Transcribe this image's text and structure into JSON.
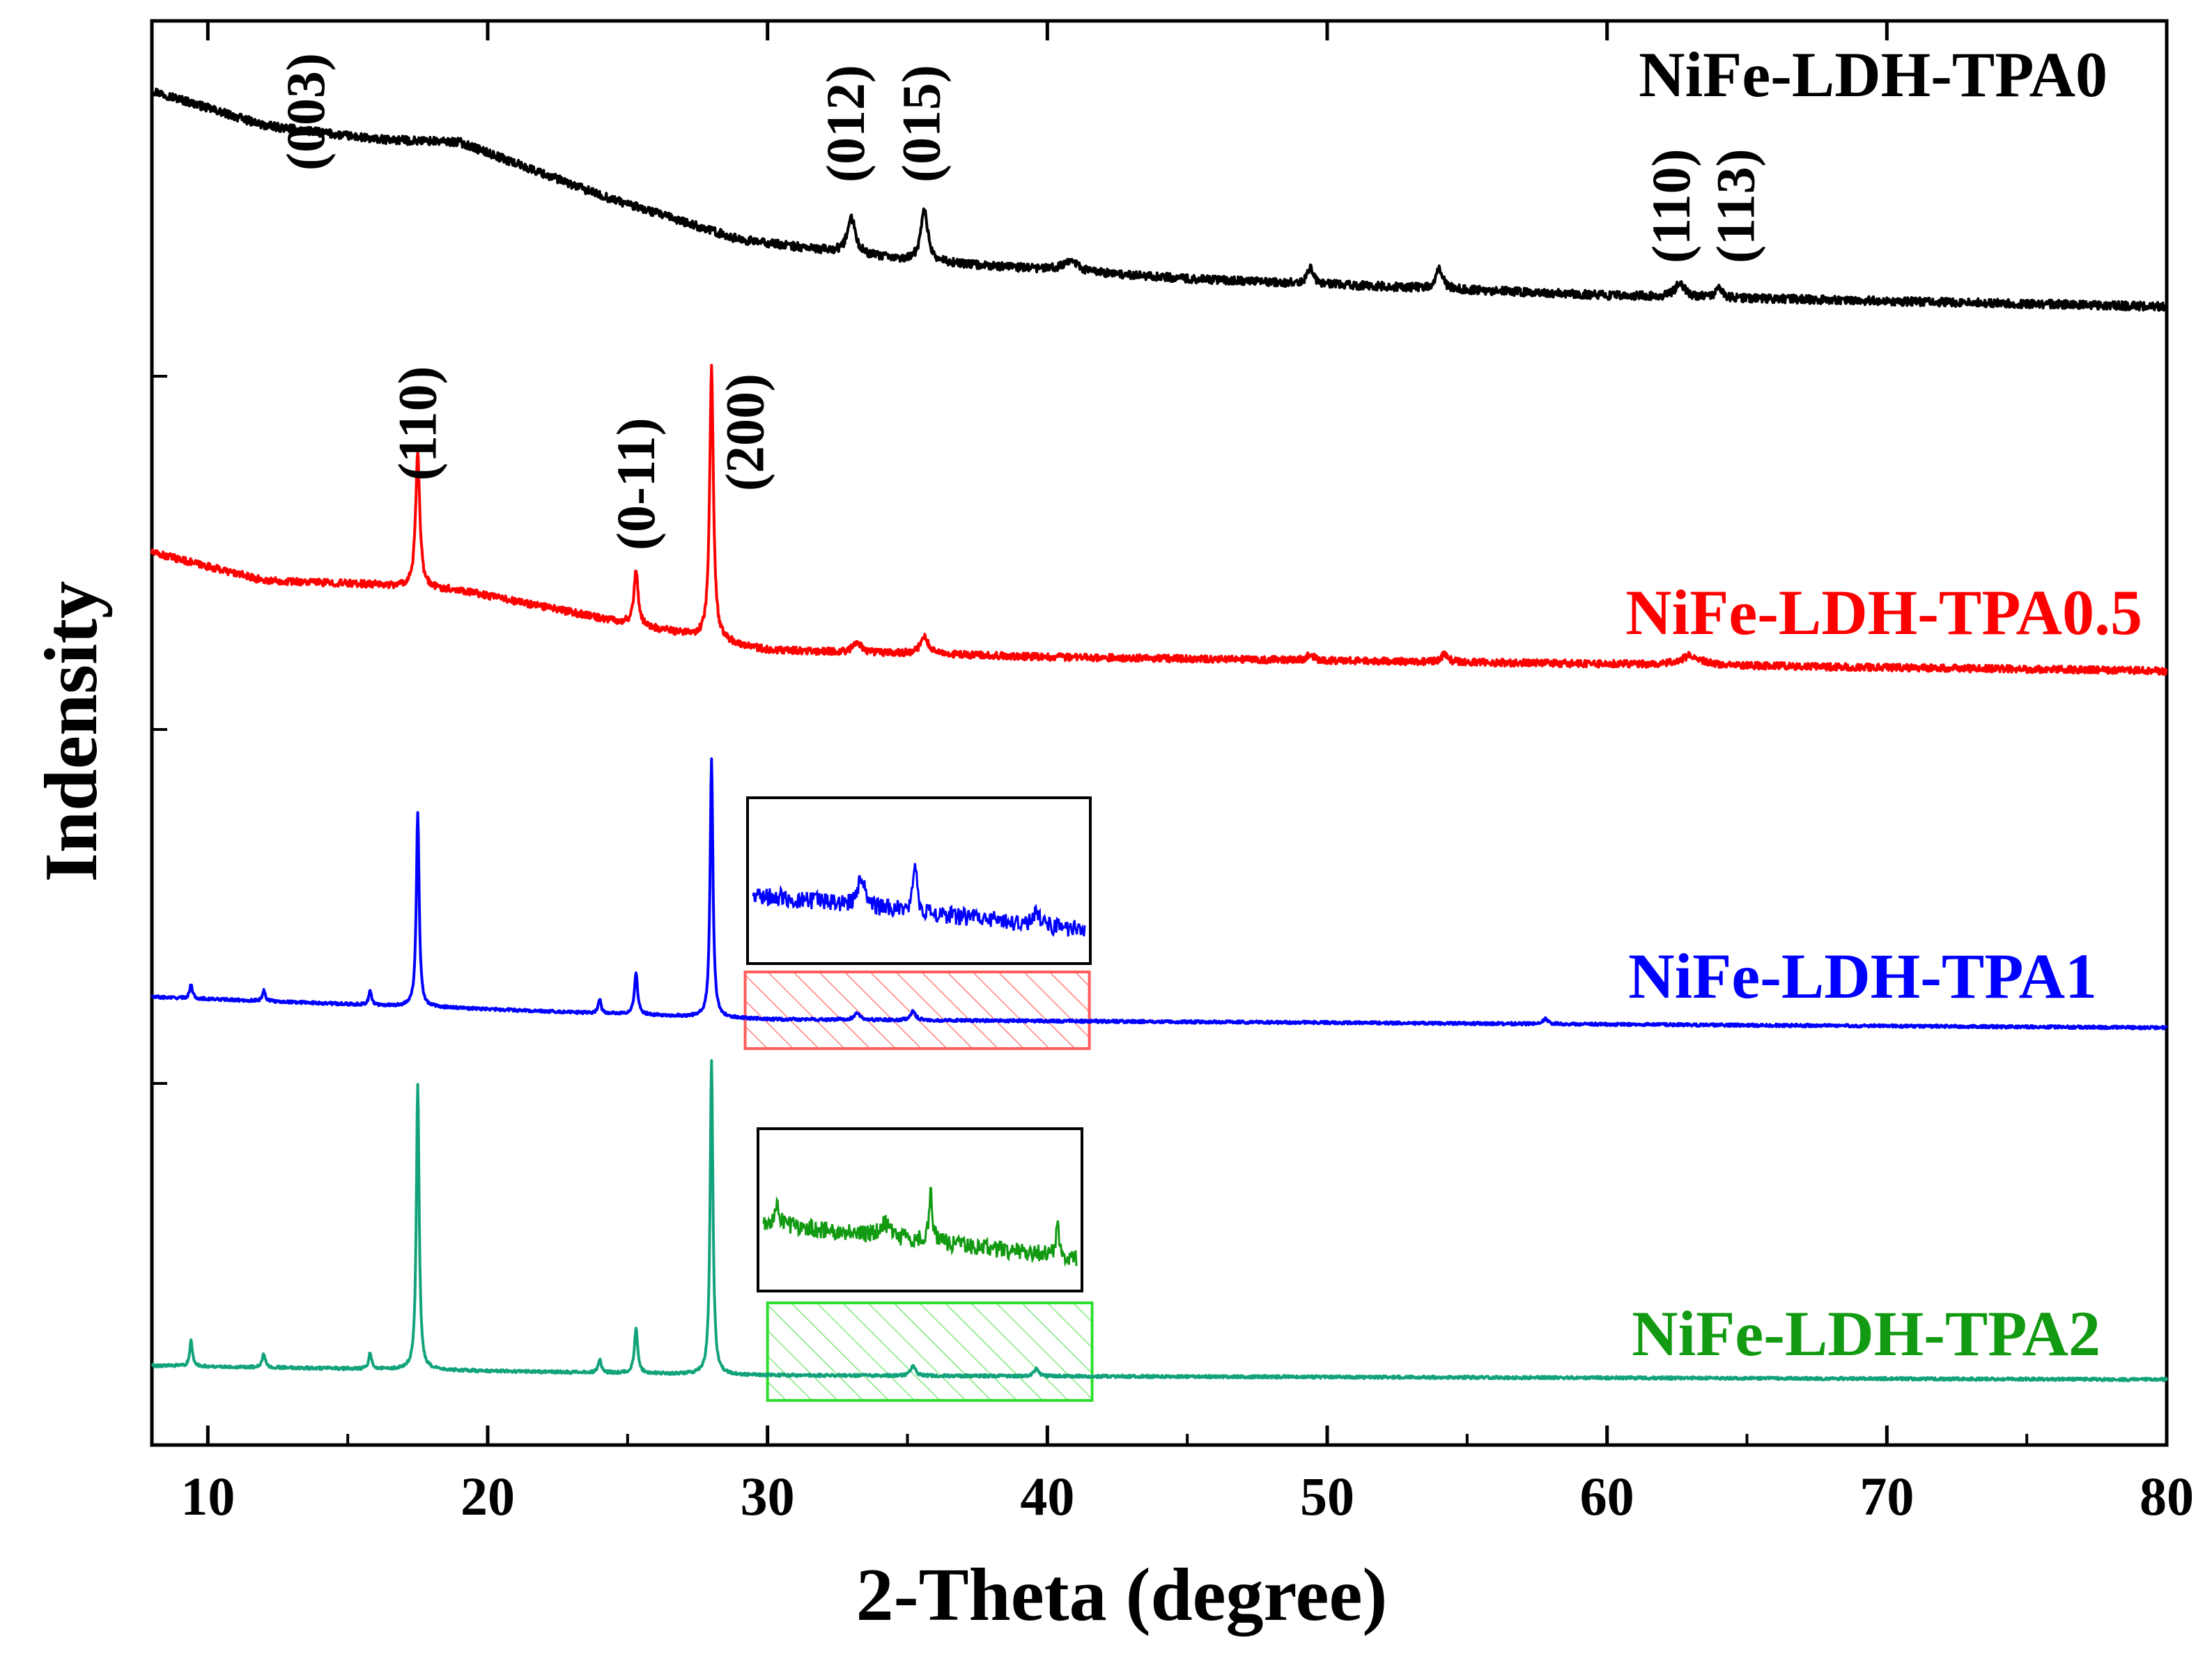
{
  "chart_data": {
    "type": "line",
    "title": "",
    "xlabel": "2-Theta (degree)",
    "ylabel": "Indensity",
    "xlim": [
      8,
      80
    ],
    "x_ticks": [
      10,
      20,
      30,
      40,
      50,
      60,
      70,
      80
    ],
    "y_ticks_visible": false,
    "grid": false,
    "series": [
      {
        "name": "NiFe-LDH-TPA0",
        "color": "#000000",
        "offset_level": 3,
        "baseline": [
          [
            8,
            1.55
          ],
          [
            12,
            1.3
          ],
          [
            16,
            1.2
          ],
          [
            19,
            1.18
          ],
          [
            24,
            0.8
          ],
          [
            29,
            0.48
          ],
          [
            35,
            0.33
          ],
          [
            45,
            0.2
          ],
          [
            60,
            0.08
          ],
          [
            80,
            0.0
          ]
        ],
        "noise": 0.06,
        "peaks": [
          {
            "x": 33.0,
            "h": 0.25,
            "w": 0.35
          },
          {
            "x": 35.6,
            "h": 0.38,
            "w": 0.3
          },
          {
            "x": 40.8,
            "h": 0.08,
            "w": 0.6
          },
          {
            "x": 49.4,
            "h": 0.12,
            "w": 0.22
          },
          {
            "x": 54.0,
            "h": 0.14,
            "w": 0.3
          },
          {
            "x": 62.6,
            "h": 0.1,
            "w": 0.4
          },
          {
            "x": 64.0,
            "h": 0.07,
            "w": 0.25
          }
        ]
      },
      {
        "name": "NiFe-LDH-TPA0.5",
        "color": "#ff0000",
        "offset_level": 2,
        "baseline": [
          [
            8,
            0.85
          ],
          [
            12,
            0.65
          ],
          [
            16,
            0.62
          ],
          [
            19,
            0.58
          ],
          [
            24,
            0.38
          ],
          [
            30,
            0.15
          ],
          [
            40,
            0.1
          ],
          [
            80,
            0.0
          ]
        ],
        "noise": 0.05,
        "peaks": [
          {
            "x": 17.5,
            "h": 0.95,
            "w": 0.18
          },
          {
            "x": 25.3,
            "h": 0.4,
            "w": 0.18
          },
          {
            "x": 28.0,
            "h": 1.95,
            "w": 0.16
          },
          {
            "x": 33.2,
            "h": 0.08,
            "w": 0.3
          },
          {
            "x": 35.6,
            "h": 0.12,
            "w": 0.35
          },
          {
            "x": 49.4,
            "h": 0.05,
            "w": 0.25
          },
          {
            "x": 54.2,
            "h": 0.06,
            "w": 0.25
          },
          {
            "x": 63.0,
            "h": 0.07,
            "w": 0.8
          }
        ]
      },
      {
        "name": "NiFe-LDH-TPA1",
        "color": "#0000ff",
        "offset_level": 1,
        "baseline": [
          [
            8,
            0.22
          ],
          [
            30,
            0.06
          ],
          [
            80,
            0.0
          ]
        ],
        "noise": 0.02,
        "peaks": [
          {
            "x": 9.4,
            "h": 0.1,
            "w": 0.12
          },
          {
            "x": 12.0,
            "h": 0.08,
            "w": 0.12
          },
          {
            "x": 15.8,
            "h": 0.1,
            "w": 0.12
          },
          {
            "x": 17.5,
            "h": 1.4,
            "w": 0.12
          },
          {
            "x": 24.0,
            "h": 0.1,
            "w": 0.12
          },
          {
            "x": 25.3,
            "h": 0.3,
            "w": 0.14
          },
          {
            "x": 28.0,
            "h": 1.85,
            "w": 0.12
          },
          {
            "x": 33.2,
            "h": 0.05,
            "w": 0.25
          },
          {
            "x": 35.2,
            "h": 0.07,
            "w": 0.2
          },
          {
            "x": 57.8,
            "h": 0.04,
            "w": 0.2
          }
        ],
        "inset": {
          "x_range": [
            29.2,
            41.5
          ],
          "peaks": [
            {
              "x": 33.2,
              "h": 0.55,
              "w": 0.3
            },
            {
              "x": 35.2,
              "h": 0.85,
              "w": 0.18
            },
            {
              "x": 39.7,
              "h": 0.25,
              "w": 0.25
            }
          ]
        }
      },
      {
        "name": "NiFe-LDH-TPA2",
        "color": "#12a37a",
        "offset_level": 0,
        "baseline": [
          [
            8,
            0.1
          ],
          [
            30,
            0.03
          ],
          [
            80,
            0.0
          ]
        ],
        "noise": 0.02,
        "peaks": [
          {
            "x": 9.4,
            "h": 0.18,
            "w": 0.12
          },
          {
            "x": 12.0,
            "h": 0.1,
            "w": 0.12
          },
          {
            "x": 15.8,
            "h": 0.12,
            "w": 0.12
          },
          {
            "x": 17.5,
            "h": 2.05,
            "w": 0.12
          },
          {
            "x": 24.0,
            "h": 0.1,
            "w": 0.12
          },
          {
            "x": 25.3,
            "h": 0.32,
            "w": 0.14
          },
          {
            "x": 28.0,
            "h": 2.25,
            "w": 0.12
          },
          {
            "x": 35.2,
            "h": 0.08,
            "w": 0.2
          },
          {
            "x": 39.6,
            "h": 0.05,
            "w": 0.2
          }
        ],
        "inset": {
          "x_range": [
            30.0,
            41.6
          ],
          "color": "#129a12",
          "peaks": [
            {
              "x": 30.5,
              "h": 0.45,
              "w": 0.2
            },
            {
              "x": 34.5,
              "h": 0.25,
              "w": 0.4
            },
            {
              "x": 36.2,
              "h": 1.0,
              "w": 0.14
            },
            {
              "x": 40.9,
              "h": 0.65,
              "w": 0.12
            }
          ]
        }
      }
    ],
    "series_label_colors": {
      "NiFe-LDH-TPA0": "#000000",
      "NiFe-LDH-TPA0.5": "#ff0000",
      "NiFe-LDH-TPA1": "#0000ff",
      "NiFe-LDH-TPA2": "#129a12"
    },
    "peak_labels_lower": [
      {
        "text": "(110)",
        "x": 17.5
      },
      {
        "text": "(0-11)",
        "x": 25.3
      },
      {
        "text": "(200)",
        "x": 29.2
      }
    ],
    "peak_labels_upper": [
      {
        "text": "(003)",
        "x": 13.5
      },
      {
        "text": "(012)",
        "x": 32.8
      },
      {
        "text": "(015)",
        "x": 35.5
      },
      {
        "text": "(110)",
        "x": 62.3
      },
      {
        "text": "(113)",
        "x": 64.6
      }
    ],
    "highlight_boxes": [
      {
        "series": "NiFe-LDH-TPA1",
        "x_range": [
          29.2,
          41.5
        ],
        "color": "#ff5c5c"
      },
      {
        "series": "NiFe-LDH-TPA2",
        "x_range": [
          30.0,
          41.6
        ],
        "color": "#2de02d"
      }
    ]
  }
}
